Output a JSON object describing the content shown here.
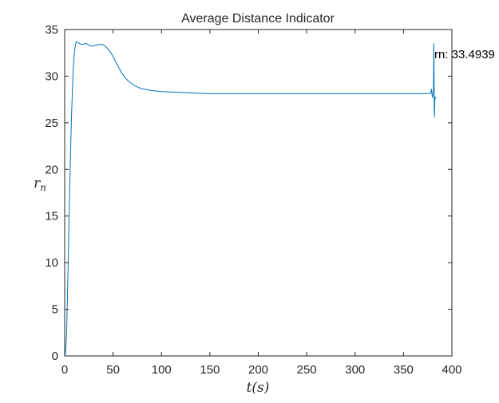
{
  "colors": {
    "background": "#ffffff",
    "axes": "#262626",
    "series_line": "#0072BD"
  },
  "chart_data": {
    "type": "line",
    "title": "Average Distance Indicator",
    "xlabel": "t(s)",
    "ylabel": "r_n",
    "xlim": [
      0,
      400
    ],
    "ylim": [
      0,
      35
    ],
    "xticks": [
      0,
      50,
      100,
      150,
      200,
      250,
      300,
      350,
      400
    ],
    "yticks": [
      0,
      5,
      10,
      15,
      20,
      25,
      30,
      35
    ],
    "grid": false,
    "box": true,
    "annotation": {
      "text": "rn: 33.4939",
      "x": 381.5,
      "y": 33.49
    },
    "series": [
      {
        "x": [
          0,
          1,
          2,
          3,
          4,
          5,
          6,
          7,
          8,
          9,
          10,
          11,
          12,
          13,
          14,
          15,
          16,
          18,
          20,
          22,
          24,
          26,
          28,
          30,
          32,
          34,
          36,
          38,
          40,
          42,
          44,
          46,
          48,
          50,
          52,
          54,
          56,
          58,
          60,
          62,
          64,
          66,
          68,
          70,
          72,
          74,
          76,
          78,
          80,
          85,
          90,
          95,
          100,
          110,
          120,
          130,
          140,
          150,
          175,
          200,
          225,
          250,
          275,
          300,
          325,
          350,
          370,
          378,
          379,
          379.5,
          380,
          380.5,
          381,
          381.3,
          381.6,
          381.8,
          382,
          382.3,
          382.6,
          383
        ],
        "values": [
          0,
          0.5,
          2.5,
          7,
          12,
          17,
          21.5,
          25.5,
          28.5,
          31,
          32.5,
          33.3,
          33.7,
          33.65,
          33.6,
          33.5,
          33.45,
          33.4,
          33.45,
          33.5,
          33.4,
          33.25,
          33.2,
          33.25,
          33.3,
          33.35,
          33.4,
          33.4,
          33.35,
          33.2,
          33.0,
          32.75,
          32.45,
          32.1,
          31.7,
          31.3,
          30.9,
          30.5,
          30.2,
          29.9,
          29.65,
          29.45,
          29.3,
          29.15,
          29.0,
          28.9,
          28.8,
          28.72,
          28.65,
          28.55,
          28.45,
          28.4,
          28.35,
          28.3,
          28.25,
          28.2,
          28.15,
          28.12,
          28.12,
          28.12,
          28.12,
          28.12,
          28.12,
          28.12,
          28.12,
          28.12,
          28.12,
          28.15,
          28.6,
          28.0,
          27.7,
          28.2,
          28.3,
          33.49,
          30.5,
          26.5,
          25.6,
          27.3,
          27.8,
          27.6
        ]
      }
    ]
  }
}
